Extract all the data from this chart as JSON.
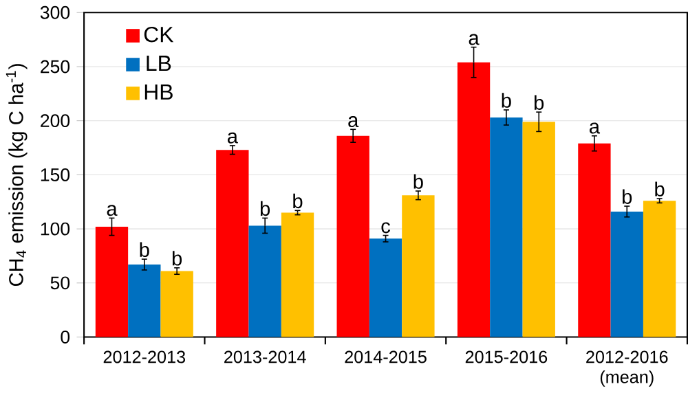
{
  "chart_data": {
    "type": "bar",
    "ylabel": "CH$_{4}$ emission (kg C ha$^{-1}$)",
    "categories": [
      "2012-2013",
      "2013-2014",
      "2014-2015",
      "2015-2016",
      "2012-2016 (mean)"
    ],
    "series": [
      {
        "name": "CK",
        "color": "#ff0000",
        "values": [
          102,
          173,
          186,
          254,
          179
        ],
        "errors": [
          8,
          4,
          6,
          14,
          7
        ],
        "value_labels": [
          "a",
          "a",
          "a",
          "a",
          "a"
        ]
      },
      {
        "name": "LB",
        "color": "#0070c0",
        "values": [
          67,
          103,
          91,
          203,
          116
        ],
        "errors": [
          5,
          7,
          3,
          7,
          5
        ],
        "value_labels": [
          "b",
          "b",
          "c",
          "b",
          "b"
        ]
      },
      {
        "name": "HB",
        "color": "#ffc000",
        "values": [
          61,
          115,
          131,
          199,
          126
        ],
        "errors": [
          3,
          2,
          4,
          9,
          2
        ],
        "value_labels": [
          "b",
          "b",
          "b",
          "b",
          "b"
        ]
      }
    ],
    "ylim": [
      0,
      300
    ],
    "yticks": [
      0,
      50,
      100,
      150,
      200,
      250,
      300
    ],
    "grid": "y",
    "legend": "top left"
  }
}
